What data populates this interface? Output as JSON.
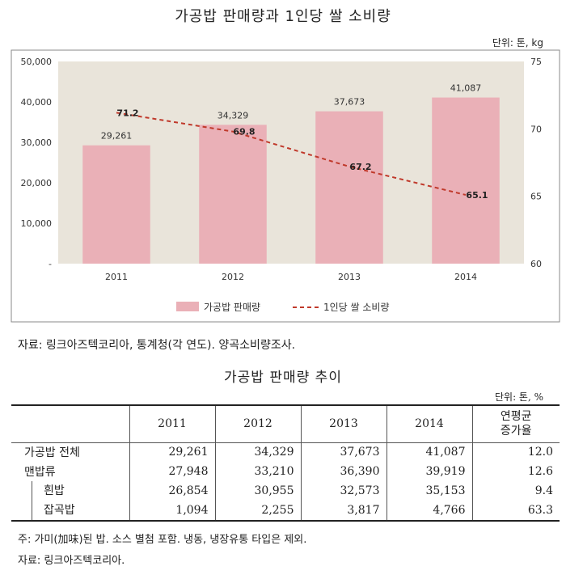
{
  "chart_title": "가공밥 판매량과 1인당 쌀 소비량",
  "chart_unit": "단위: 톤, kg",
  "chart_source": "자료: 링크아즈텍코리아, 통계청(각 연도). 양곡소비량조사.",
  "colors": {
    "bar": "#eab0b7",
    "line": "#c0392b",
    "plot_bg": "#e9e4da"
  },
  "chart_data": {
    "type": "bar",
    "categories": [
      "2011",
      "2012",
      "2013",
      "2014"
    ],
    "series": [
      {
        "name": "가공밥 판매량",
        "type": "bar",
        "axis": "left",
        "values": [
          29261,
          34329,
          37673,
          41087
        ],
        "labels": [
          "29,261",
          "34,329",
          "37,673",
          "41,087"
        ]
      },
      {
        "name": "1인당 쌀 소비량",
        "type": "line",
        "axis": "right",
        "values": [
          71.2,
          69.8,
          67.2,
          65.1
        ],
        "labels": [
          "71.2",
          "69.8",
          "67.2",
          "65.1"
        ]
      }
    ],
    "y_left": {
      "ylim": [
        0,
        50000
      ],
      "ticks": [
        "-",
        "10,000",
        "20,000",
        "30,000",
        "40,000",
        "50,000"
      ]
    },
    "y_right": {
      "ylim": [
        60,
        75
      ],
      "ticks": [
        "60",
        "65",
        "70",
        "75"
      ]
    },
    "grid": false,
    "legend": "bottom"
  },
  "table": {
    "title": "가공밥 판매량 추이",
    "unit": "단위: 톤, %",
    "headers": [
      "",
      "2011",
      "2012",
      "2013",
      "2014",
      "연평균\n증가율"
    ],
    "rows": [
      {
        "label": "가공밥 전체",
        "values": [
          "29,261",
          "34,329",
          "37,673",
          "41,087",
          "12.0"
        ]
      },
      {
        "label": "맨밥류",
        "values": [
          "27,948",
          "33,210",
          "36,390",
          "39,919",
          "12.6"
        ]
      },
      {
        "label": "흰밥",
        "values": [
          "26,854",
          "30,955",
          "32,573",
          "35,153",
          "9.4"
        ]
      },
      {
        "label": "잡곡밥",
        "values": [
          "1,094",
          "2,255",
          "3,817",
          "4,766",
          "63.3"
        ]
      }
    ]
  },
  "note": "주: 가미(加味)된 밥. 소스 별첨 포함. 냉동, 냉장유통 타입은 제외.",
  "table_source": "자료: 링크아즈텍코리아."
}
